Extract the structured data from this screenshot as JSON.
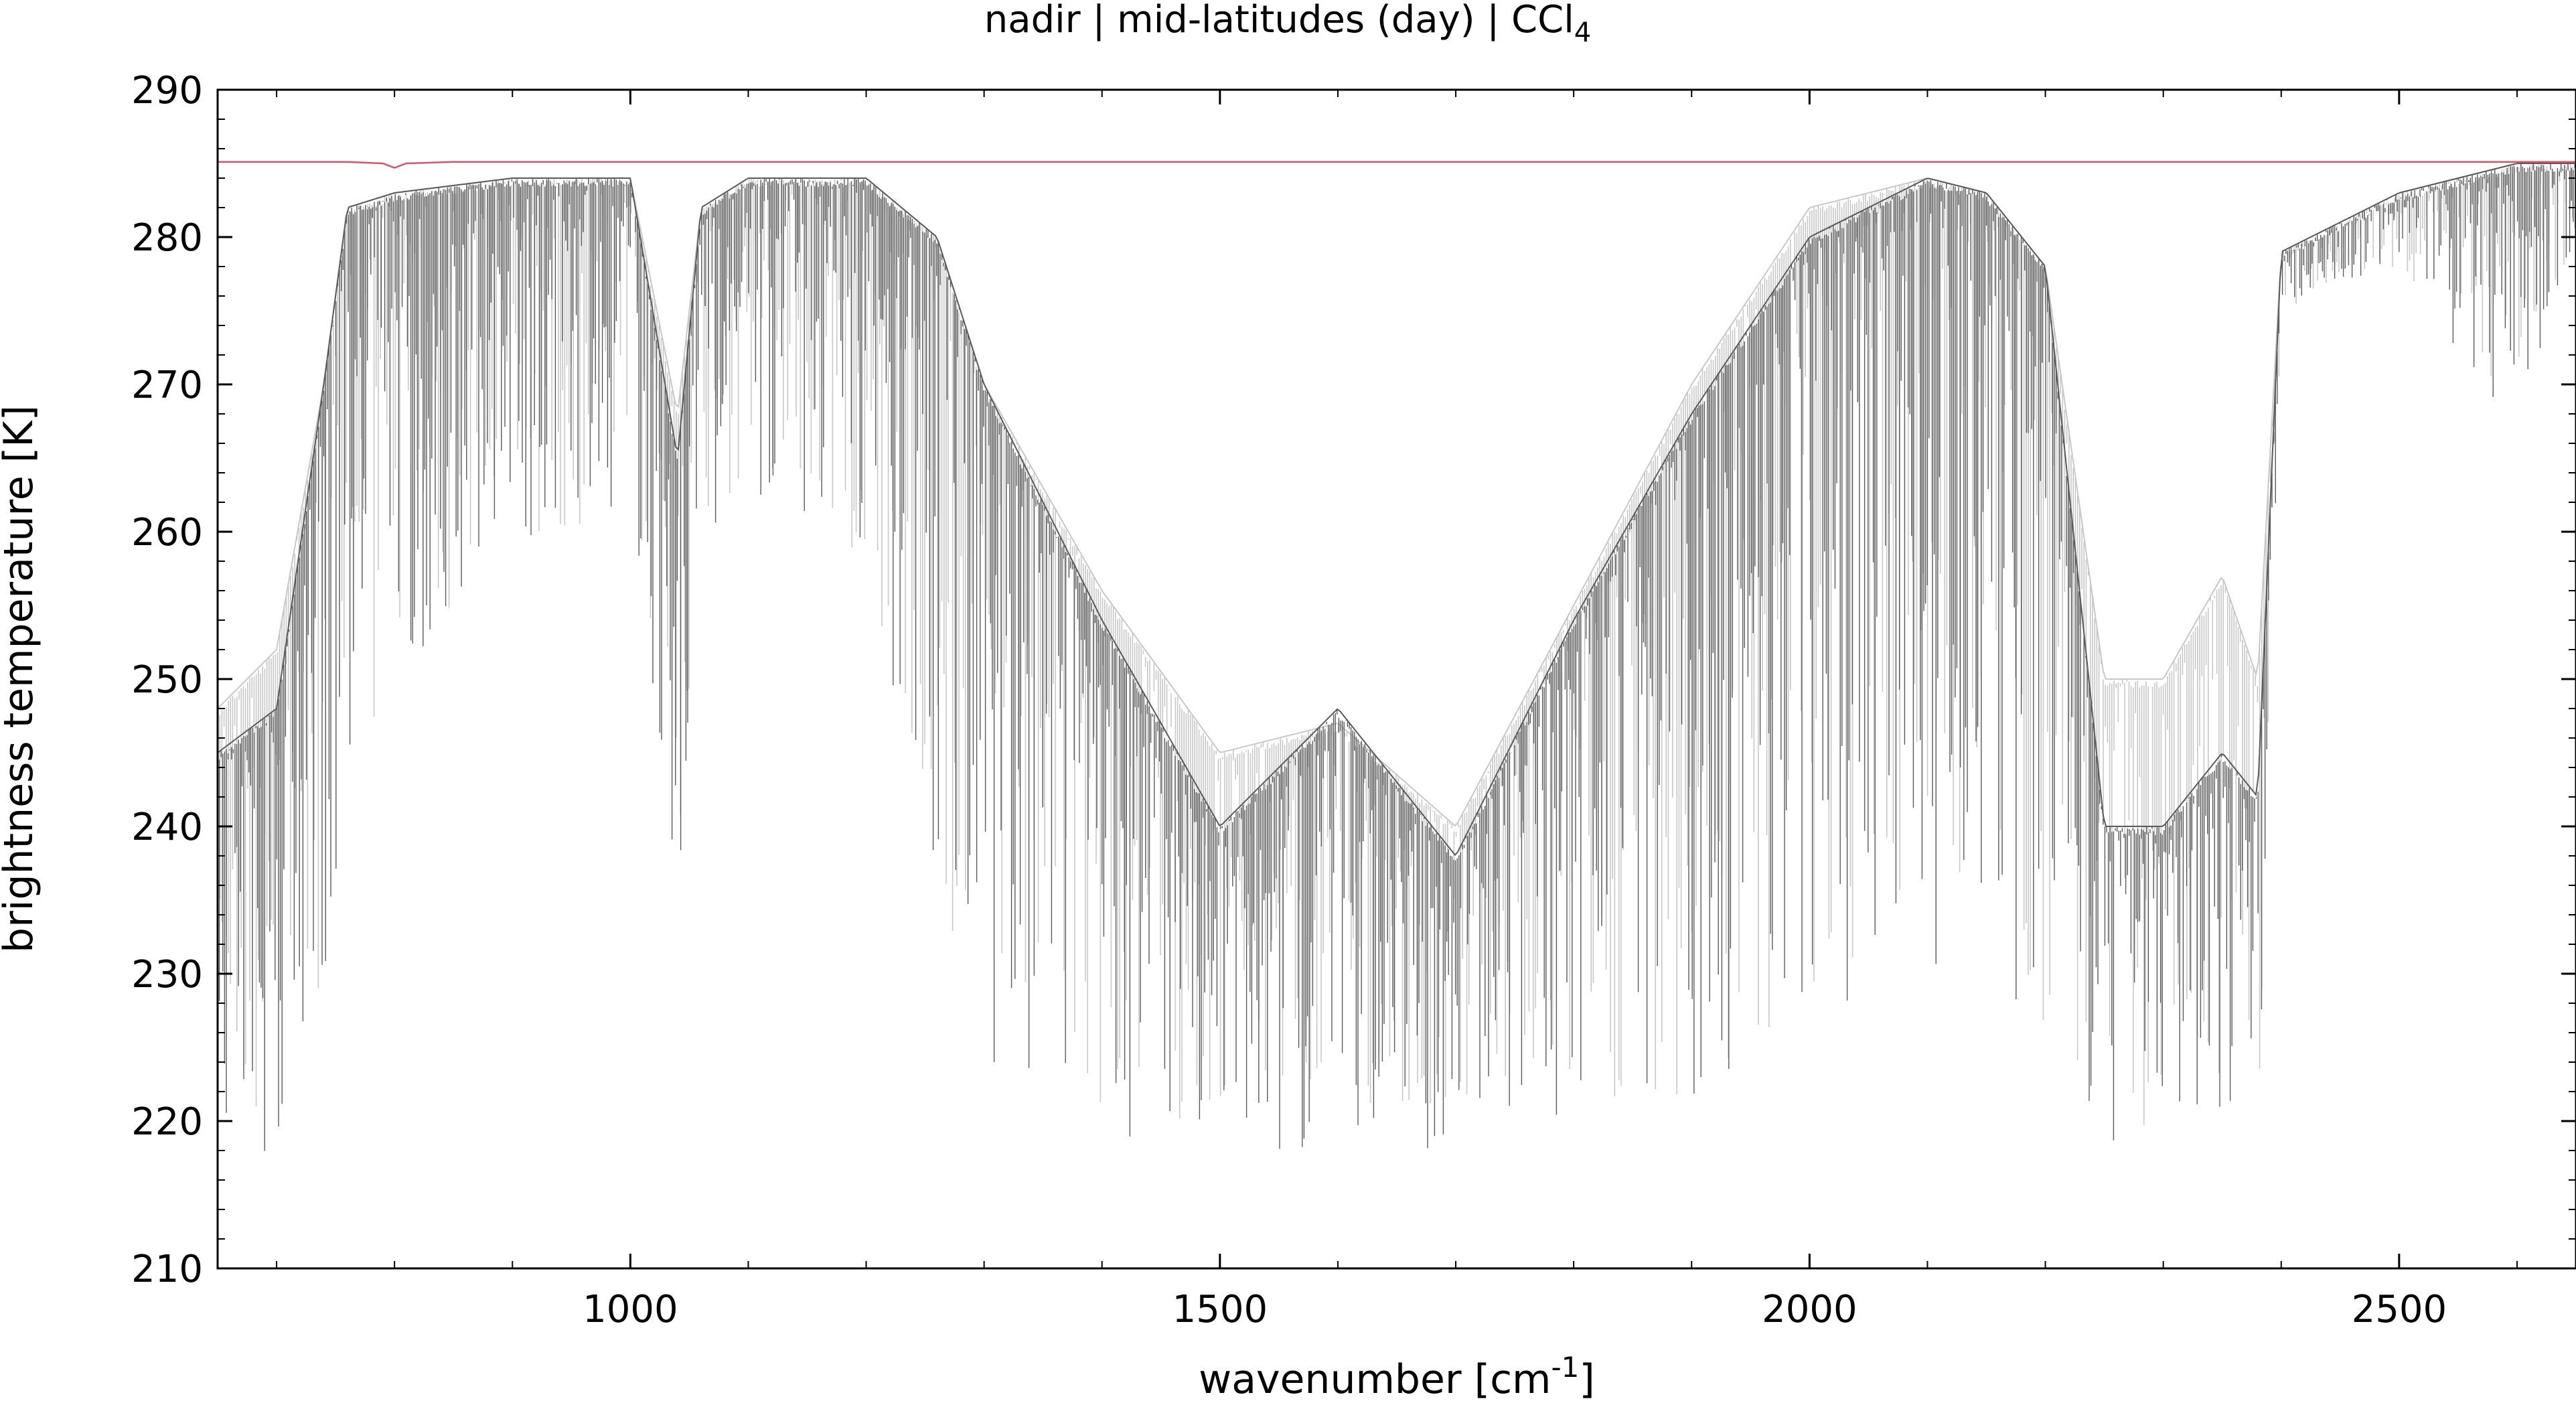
{
  "chart_data": {
    "type": "line",
    "title": "nadir | mid-latitudes (day) | CCl",
    "title_subscript": "4",
    "xlabel": "wavenumber [cm",
    "xlabel_superscript": "-1",
    "xlabel_suffix": "]",
    "ylabel": "brightness temperature [K]",
    "xlim": [
      650,
      2650
    ],
    "ylim": [
      210,
      290
    ],
    "x_ticks": [
      1000,
      1500,
      2000,
      2500
    ],
    "x_tick_labels": [
      "1000",
      "1500",
      "2000",
      "2500"
    ],
    "y_ticks": [
      210,
      220,
      230,
      240,
      250,
      260,
      270,
      280,
      290
    ],
    "y_tick_labels": [
      "210",
      "220",
      "230",
      "240",
      "250",
      "260",
      "270",
      "280",
      "290"
    ],
    "grid": false,
    "series": [
      {
        "color": "#c8c8c8",
        "style": "dense spectrum, light grey",
        "envelope_x": [
          650,
          700,
          740,
          760,
          800,
          900,
          1000,
          1040,
          1060,
          1100,
          1200,
          1260,
          1300,
          1400,
          1500,
          1600,
          1700,
          1800,
          1900,
          2000,
          2100,
          2150,
          2200,
          2250,
          2300,
          2350,
          2380,
          2400,
          2500,
          2600,
          2650
        ],
        "envelope_upper": [
          248,
          252,
          270,
          282,
          283,
          284,
          284,
          268,
          282,
          284,
          284,
          280,
          270,
          256,
          245,
          247,
          240,
          255,
          270,
          282,
          284,
          283,
          278,
          250,
          250,
          257,
          250,
          279,
          283,
          285,
          285
        ],
        "envelope_lower": [
          221,
          219,
          230,
          240,
          250,
          258,
          262,
          236,
          260,
          262,
          258,
          234,
          224,
          220,
          220,
          220,
          220,
          220,
          222,
          228,
          232,
          236,
          224,
          218,
          219,
          222,
          218,
          275,
          278,
          268,
          280
        ]
      },
      {
        "color": "#5a5a5a",
        "style": "dense spectrum, dark grey",
        "envelope_x": [
          650,
          700,
          740,
          760,
          800,
          900,
          1000,
          1040,
          1060,
          1100,
          1200,
          1260,
          1300,
          1400,
          1500,
          1600,
          1700,
          1800,
          1900,
          2000,
          2100,
          2150,
          2200,
          2250,
          2300,
          2350,
          2380,
          2400,
          2500,
          2600,
          2650
        ],
        "envelope_upper": [
          245,
          248,
          270,
          282,
          283,
          284,
          284,
          265,
          282,
          284,
          284,
          280,
          270,
          254,
          240,
          248,
          238,
          254,
          268,
          280,
          284,
          283,
          278,
          240,
          240,
          245,
          242,
          279,
          283,
          285,
          285
        ],
        "envelope_lower": [
          218,
          217,
          228,
          240,
          250,
          258,
          262,
          233,
          260,
          262,
          258,
          232,
          222,
          219,
          218,
          218,
          218,
          219,
          221,
          226,
          230,
          234,
          222,
          217,
          218,
          220,
          218,
          275,
          278,
          266,
          280
        ]
      },
      {
        "color": "#e0506a",
        "style": "reference line",
        "x": [
          650,
          760,
          790,
          800,
          810,
          850,
          1000,
          1500,
          2000,
          2500,
          2650
        ],
        "y": [
          285.1,
          285.1,
          285.0,
          284.7,
          285.0,
          285.1,
          285.1,
          285.1,
          285.1,
          285.1,
          285.1
        ]
      }
    ]
  }
}
